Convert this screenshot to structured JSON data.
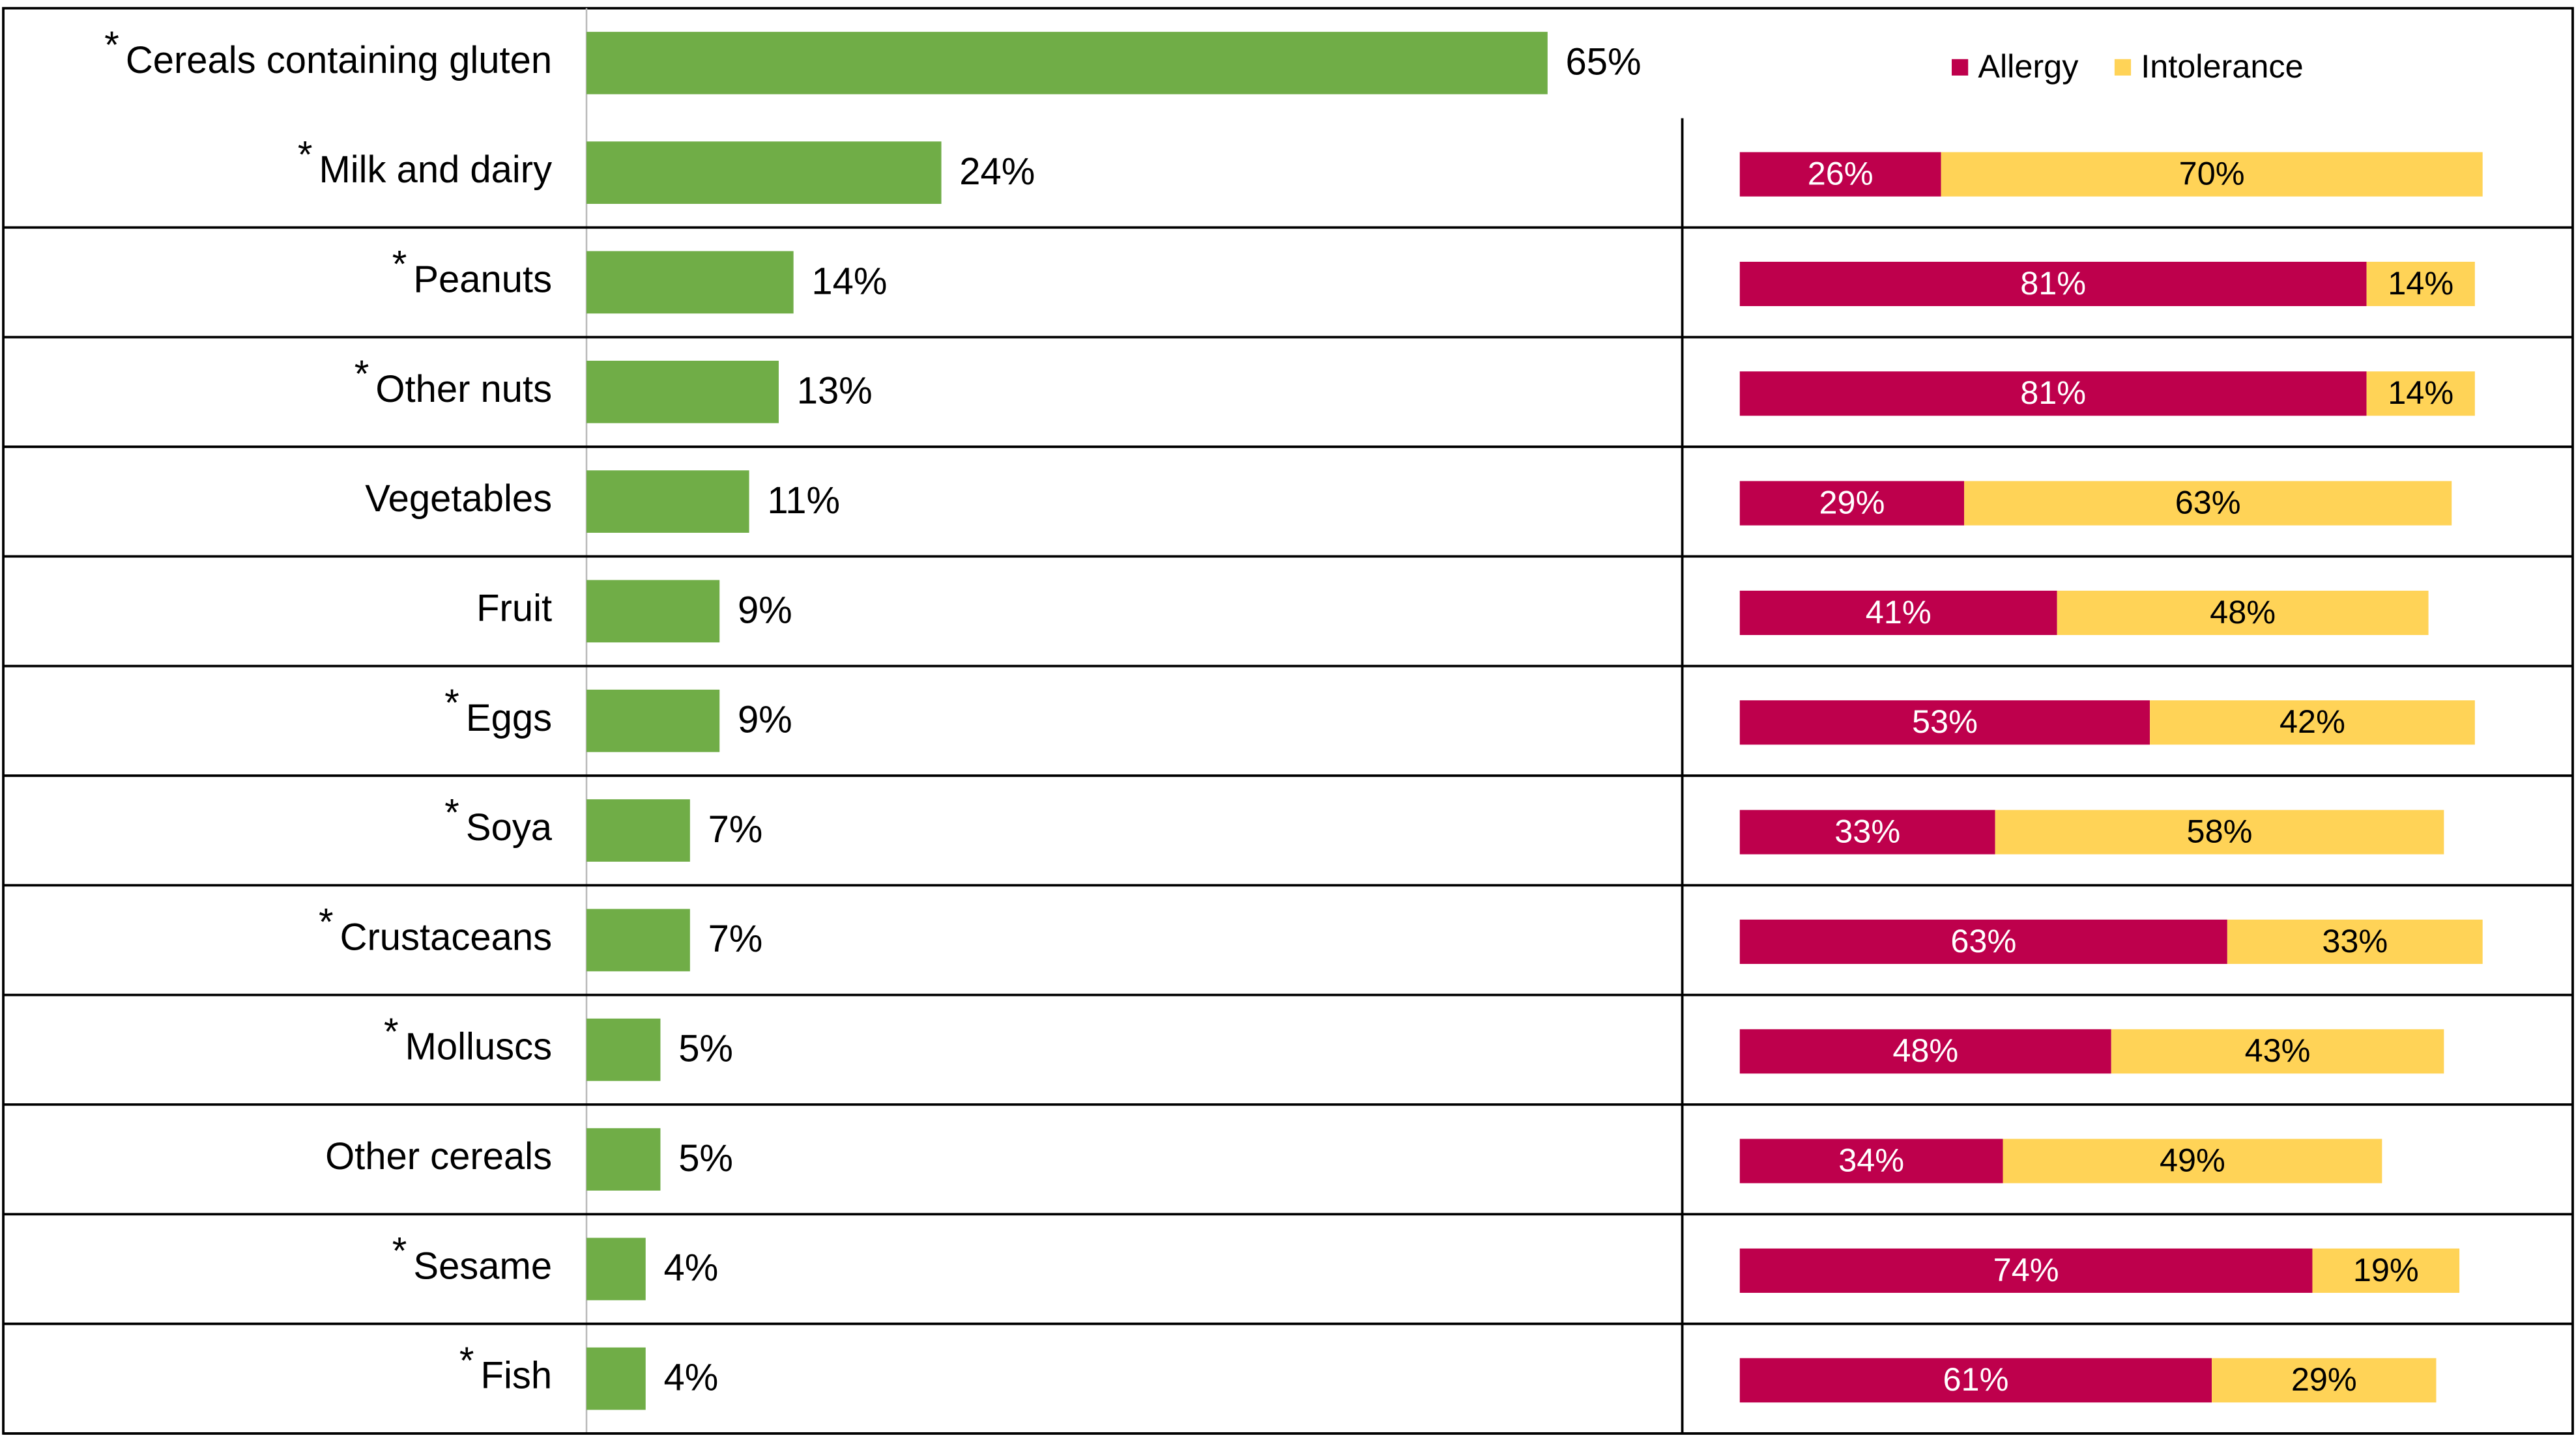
{
  "chart_data": [
    {
      "type": "bar",
      "orientation": "horizontal",
      "categories": [
        "Cereals containing gluten",
        "Milk and dairy",
        "Peanuts",
        "Other nuts",
        "Vegetables",
        "Fruit",
        "Eggs",
        "Soya",
        "Crustaceans",
        "Molluscs",
        "Other cereals",
        "Sesame",
        "Fish"
      ],
      "marker": "*",
      "marked": [
        true,
        true,
        true,
        true,
        false,
        false,
        true,
        true,
        true,
        true,
        false,
        true,
        true
      ],
      "values": [
        65,
        24,
        14,
        13,
        11,
        9,
        9,
        7,
        7,
        5,
        5,
        4,
        4
      ],
      "value_labels": [
        "65%",
        "24%",
        "14%",
        "13%",
        "11%",
        "9%",
        "9%",
        "7%",
        "7%",
        "5%",
        "5%",
        "4%",
        "4%"
      ],
      "color": "#70ad47",
      "xlim": [
        0,
        100
      ]
    },
    {
      "type": "stacked_bar",
      "orientation": "horizontal",
      "legend": "top-right",
      "xlim": [
        0,
        100
      ],
      "series": [
        {
          "name": "Allergy",
          "color": "#be004c",
          "label_color": "#ffffff",
          "values": [
            null,
            26,
            81,
            81,
            29,
            41,
            53,
            33,
            63,
            48,
            34,
            74,
            61
          ],
          "value_labels": [
            null,
            "26%",
            "81%",
            "81%",
            "29%",
            "41%",
            "53%",
            "33%",
            "63%",
            "48%",
            "34%",
            "74%",
            "61%"
          ]
        },
        {
          "name": "Intolerance",
          "color": "#ffd357",
          "label_color": "#000000",
          "values": [
            null,
            70,
            14,
            14,
            63,
            48,
            42,
            58,
            33,
            43,
            49,
            19,
            29
          ],
          "value_labels": [
            null,
            "70%",
            "14%",
            "14%",
            "63%",
            "48%",
            "42%",
            "58%",
            "33%",
            "43%",
            "49%",
            "19%",
            "29%"
          ]
        }
      ]
    }
  ]
}
